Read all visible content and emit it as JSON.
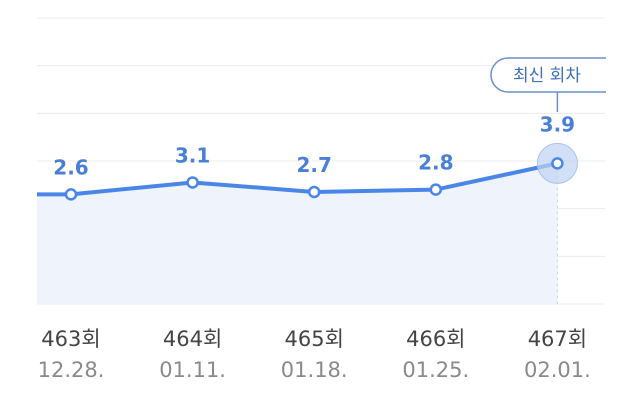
{
  "chart_data": {
    "type": "line",
    "categories": [
      "463회",
      "464회",
      "465회",
      "466회",
      "467회"
    ],
    "dates": [
      "12.28.",
      "01.11.",
      "01.18.",
      "01.25.",
      "02.01."
    ],
    "values": [
      2.6,
      3.1,
      2.7,
      2.8,
      3.9
    ],
    "color": "#4a86e8",
    "annotation": "최신 회차",
    "ylim": [
      -2,
      10
    ],
    "yticks": [
      -2,
      0,
      2,
      4,
      6,
      8,
      10
    ],
    "grid": true
  }
}
